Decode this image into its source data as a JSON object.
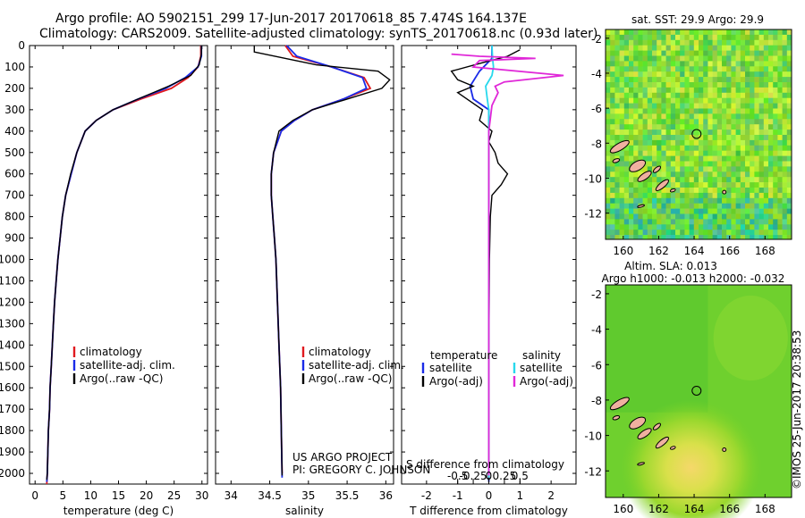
{
  "header": {
    "line1": "Argo profile: AO 5902151_299 17-Jun-2017 20170618_85 7.474S 164.137E",
    "line2": "Climatology: CARS2009. Satellite-adjusted climatology: synTS_20170618.nc (0.93d later)"
  },
  "footer": {
    "project": "US ARGO PROJECT",
    "pi": "PI: GREGORY C. JOHNSON",
    "imos": "©IMOS 25-Jun-2017 20:38:53"
  },
  "colors": {
    "clim": "#e0191f",
    "sat": "#1a2be8",
    "argo": "#000000",
    "cyan": "#28d8ec",
    "magenta": "#e028d8"
  },
  "chart_data": [
    {
      "id": "temperature",
      "type": "line",
      "xlabel": "temperature (deg C)",
      "ylabel": "",
      "xlim": [
        -1,
        31
      ],
      "ylim": [
        2050,
        0
      ],
      "xticks": [
        0,
        5,
        10,
        15,
        20,
        25,
        30
      ],
      "xtick_labels": [
        "0",
        "5",
        "10",
        "15",
        "20",
        "25",
        "30"
      ],
      "yticks": [
        0,
        100,
        200,
        300,
        400,
        500,
        600,
        700,
        800,
        900,
        1000,
        1100,
        1200,
        1300,
        1400,
        1500,
        1600,
        1700,
        1800,
        1900,
        2000
      ],
      "ytick_labels": [
        "0",
        "100",
        "200",
        "300",
        "400",
        "500",
        "600",
        "700",
        "800",
        "900",
        "1000",
        "1100",
        "1200",
        "1300",
        "1400",
        "1500",
        "1600",
        "1700",
        "1800",
        "1900",
        "2000"
      ],
      "legend": [
        "climatology",
        "satellite-adj. clim.",
        "Argo(..raw -QC)"
      ],
      "series": [
        {
          "name": "climatology",
          "color": "clim",
          "points": [
            [
              29.8,
              0
            ],
            [
              29.8,
              50
            ],
            [
              29.3,
              100
            ],
            [
              27.5,
              150
            ],
            [
              24.5,
              200
            ],
            [
              19,
              250
            ],
            [
              14,
              300
            ],
            [
              11,
              350
            ],
            [
              9,
              400
            ],
            [
              7.5,
              500
            ],
            [
              6.5,
              600
            ],
            [
              5.5,
              700
            ],
            [
              4.9,
              800
            ],
            [
              4.5,
              900
            ],
            [
              4.1,
              1000
            ],
            [
              3.8,
              1100
            ],
            [
              3.5,
              1200
            ],
            [
              3.3,
              1300
            ],
            [
              3.1,
              1400
            ],
            [
              2.9,
              1500
            ],
            [
              2.7,
              1600
            ],
            [
              2.6,
              1700
            ],
            [
              2.4,
              1800
            ],
            [
              2.3,
              1900
            ],
            [
              2.2,
              2000
            ],
            [
              2.1,
              2050
            ]
          ]
        },
        {
          "name": "satellite-adj. clim.",
          "color": "sat",
          "points": [
            [
              29.9,
              0
            ],
            [
              29.9,
              50
            ],
            [
              29.3,
              100
            ],
            [
              27,
              150
            ],
            [
              23.5,
              200
            ],
            [
              18.5,
              250
            ],
            [
              14,
              300
            ],
            [
              11,
              350
            ],
            [
              9,
              400
            ],
            [
              7.5,
              500
            ],
            [
              6.5,
              600
            ],
            [
              5.5,
              700
            ],
            [
              4.9,
              800
            ],
            [
              4.5,
              900
            ],
            [
              4.1,
              1000
            ],
            [
              3.8,
              1100
            ],
            [
              3.5,
              1200
            ],
            [
              3.3,
              1300
            ],
            [
              3.1,
              1400
            ],
            [
              2.9,
              1500
            ],
            [
              2.7,
              1600
            ],
            [
              2.6,
              1700
            ],
            [
              2.4,
              1800
            ],
            [
              2.3,
              1900
            ],
            [
              2.2,
              2000
            ],
            [
              2.1,
              2040
            ]
          ]
        },
        {
          "name": "Argo(..raw -QC)",
          "color": "argo",
          "points": [
            [
              29.9,
              0
            ],
            [
              29.9,
              40
            ],
            [
              29.5,
              90
            ],
            [
              28,
              140
            ],
            [
              24,
              190
            ],
            [
              18.5,
              250
            ],
            [
              14,
              300
            ],
            [
              11,
              350
            ],
            [
              9,
              400
            ],
            [
              7.5,
              500
            ],
            [
              6.4,
              600
            ],
            [
              5.5,
              700
            ],
            [
              4.9,
              800
            ],
            [
              4.5,
              900
            ],
            [
              4.1,
              1000
            ],
            [
              3.8,
              1100
            ],
            [
              3.5,
              1200
            ],
            [
              3.3,
              1300
            ],
            [
              3.1,
              1400
            ],
            [
              2.9,
              1500
            ],
            [
              2.7,
              1600
            ],
            [
              2.6,
              1700
            ],
            [
              2.4,
              1800
            ],
            [
              2.3,
              1900
            ],
            [
              2.2,
              2000
            ],
            [
              2.1,
              2030
            ]
          ]
        }
      ]
    },
    {
      "id": "salinity",
      "type": "line",
      "xlabel": "salinity",
      "xlim": [
        33.8,
        36.1
      ],
      "ylim": [
        2050,
        0
      ],
      "xticks": [
        34,
        34.5,
        35,
        35.5,
        36
      ],
      "xtick_labels": [
        "34",
        "34.5",
        "35",
        "35.5",
        "36"
      ],
      "legend": [
        "climatology",
        "satellite-adj. clim.",
        "Argo(..raw -QC)"
      ],
      "series": [
        {
          "name": "climatology",
          "color": "clim",
          "points": [
            [
              34.7,
              0
            ],
            [
              34.8,
              50
            ],
            [
              35.3,
              100
            ],
            [
              35.72,
              150
            ],
            [
              35.8,
              200
            ],
            [
              35.45,
              250
            ],
            [
              35.05,
              300
            ],
            [
              34.82,
              350
            ],
            [
              34.65,
              400
            ],
            [
              34.55,
              500
            ],
            [
              34.52,
              600
            ],
            [
              34.52,
              700
            ],
            [
              34.54,
              800
            ],
            [
              34.56,
              900
            ],
            [
              34.58,
              1000
            ],
            [
              34.6,
              1200
            ],
            [
              34.62,
              1400
            ],
            [
              34.64,
              1600
            ],
            [
              34.65,
              1800
            ],
            [
              34.66,
              2000
            ]
          ]
        },
        {
          "name": "satellite-adj. clim.",
          "color": "sat",
          "points": [
            [
              34.72,
              0
            ],
            [
              34.85,
              50
            ],
            [
              35.3,
              100
            ],
            [
              35.7,
              150
            ],
            [
              35.75,
              200
            ],
            [
              35.45,
              250
            ],
            [
              35.05,
              300
            ],
            [
              34.82,
              350
            ],
            [
              34.65,
              400
            ],
            [
              34.55,
              500
            ],
            [
              34.52,
              600
            ],
            [
              34.52,
              700
            ],
            [
              34.54,
              800
            ],
            [
              34.56,
              900
            ],
            [
              34.58,
              1000
            ],
            [
              34.6,
              1200
            ],
            [
              34.62,
              1400
            ],
            [
              34.64,
              1600
            ],
            [
              34.65,
              1800
            ],
            [
              34.66,
              2020
            ]
          ]
        },
        {
          "name": "Argo(..raw -QC)",
          "color": "argo",
          "points": [
            [
              34.3,
              0
            ],
            [
              34.3,
              30
            ],
            [
              35.1,
              90
            ],
            [
              35.9,
              120
            ],
            [
              36.05,
              160
            ],
            [
              35.95,
              200
            ],
            [
              35.5,
              250
            ],
            [
              35.05,
              300
            ],
            [
              34.8,
              350
            ],
            [
              34.62,
              400
            ],
            [
              34.55,
              500
            ],
            [
              34.52,
              600
            ],
            [
              34.52,
              700
            ],
            [
              34.54,
              800
            ],
            [
              34.56,
              900
            ],
            [
              34.58,
              1000
            ],
            [
              34.6,
              1200
            ],
            [
              34.62,
              1400
            ],
            [
              34.64,
              1600
            ],
            [
              34.65,
              1800
            ],
            [
              34.66,
              2010
            ]
          ]
        }
      ]
    },
    {
      "id": "difference",
      "type": "line",
      "xlabel": "T difference from climatology",
      "xlabel2": "S difference from climatology",
      "xlim": [
        -2.8,
        2.8
      ],
      "ylim": [
        2050,
        0
      ],
      "xticks": [
        -2,
        -1,
        0,
        1,
        2
      ],
      "xtick_labels": [
        "-2",
        "-1",
        "0",
        "1",
        "2"
      ],
      "sticks": [
        -0.5,
        -0.25,
        0,
        0.25,
        0.5
      ],
      "stick_labels": [
        "-0.5",
        "-0.25",
        "0",
        "0.25",
        "0.5"
      ],
      "legend_t_title": "temperature",
      "legend_s_title": "salinity",
      "legend_t": [
        "satellite",
        "Argo(-adj)"
      ],
      "legend_s": [
        "satellite",
        "Argo(-adj)"
      ],
      "series": [
        {
          "name": "T satellite",
          "color": "sat",
          "points": [
            [
              0.1,
              0
            ],
            [
              0.1,
              60
            ],
            [
              -0.3,
              120
            ],
            [
              -0.6,
              190
            ],
            [
              -0.5,
              250
            ],
            [
              0,
              300
            ],
            [
              0,
              400
            ],
            [
              0,
              800
            ],
            [
              0,
              1200
            ],
            [
              0,
              1600
            ],
            [
              0,
              2040
            ]
          ]
        },
        {
          "name": "T Argo(-adj)",
          "color": "argo",
          "points": [
            [
              1,
              20
            ],
            [
              0.6,
              50
            ],
            [
              -0.2,
              80
            ],
            [
              -1.2,
              120
            ],
            [
              -1,
              160
            ],
            [
              -0.5,
              190
            ],
            [
              -1,
              220
            ],
            [
              -0.6,
              260
            ],
            [
              -0.2,
              300
            ],
            [
              -0.3,
              350
            ],
            [
              0.1,
              400
            ],
            [
              0,
              450
            ],
            [
              0.2,
              500
            ],
            [
              0.3,
              550
            ],
            [
              0.6,
              600
            ],
            [
              0.4,
              650
            ],
            [
              0.1,
              700
            ],
            [
              0.05,
              800
            ],
            [
              0.02,
              1000
            ],
            [
              0,
              1500
            ],
            [
              0,
              2030
            ]
          ]
        },
        {
          "name": "S satellite",
          "color": "cyan",
          "points": [
            [
              0.1,
              0
            ],
            [
              0.12,
              60
            ],
            [
              0.15,
              100
            ],
            [
              0.1,
              140
            ],
            [
              -0.1,
              190
            ],
            [
              -0.05,
              250
            ],
            [
              0,
              300
            ],
            [
              0,
              600
            ],
            [
              0,
              1000
            ],
            [
              0,
              1500
            ],
            [
              0,
              2020
            ]
          ]
        },
        {
          "name": "S Argo(-adj)",
          "color": "magenta",
          "points": [
            [
              -1.2,
              40
            ],
            [
              -0.3,
              50
            ],
            [
              1.5,
              60
            ],
            [
              -0.3,
              70
            ],
            [
              -0.5,
              100
            ],
            [
              2.4,
              140
            ],
            [
              0.5,
              170
            ],
            [
              0.2,
              190
            ],
            [
              0.3,
              220
            ],
            [
              0.1,
              280
            ],
            [
              0,
              400
            ],
            [
              0,
              800
            ],
            [
              0,
              1200
            ],
            [
              0,
              1600
            ],
            [
              0,
              2010
            ]
          ]
        }
      ]
    },
    {
      "id": "sst_map",
      "type": "heatmap",
      "title": "sat. SST: 29.9 Argo: 29.9",
      "xlim": [
        159,
        169.5
      ],
      "ylim": [
        -13.5,
        -1.5
      ],
      "xticks": [
        160,
        162,
        164,
        166,
        168
      ],
      "xtick_labels": [
        "160",
        "162",
        "164",
        "166",
        "168"
      ],
      "yticks": [
        -2,
        -4,
        -6,
        -8,
        -10,
        -12
      ],
      "ytick_labels": [
        "-2",
        "-4",
        "-6",
        "-8",
        "-10",
        "-12"
      ],
      "marker": [
        164.137,
        -7.474
      ]
    },
    {
      "id": "sla_map",
      "type": "heatmap",
      "title1": "Altim. SLA: 0.013",
      "title2": "Argo h1000: -0.013 h2000: -0.032",
      "xlim": [
        159,
        169.5
      ],
      "ylim": [
        -13.5,
        -1.5
      ],
      "xticks": [
        160,
        162,
        164,
        166,
        168
      ],
      "xtick_labels": [
        "160",
        "162",
        "164",
        "166",
        "168"
      ],
      "yticks": [
        -2,
        -4,
        -6,
        -8,
        -10,
        -12
      ],
      "ytick_labels": [
        "-2",
        "-4",
        "-6",
        "-8",
        "-10",
        "-12"
      ],
      "marker": [
        164.137,
        -7.474
      ]
    }
  ]
}
